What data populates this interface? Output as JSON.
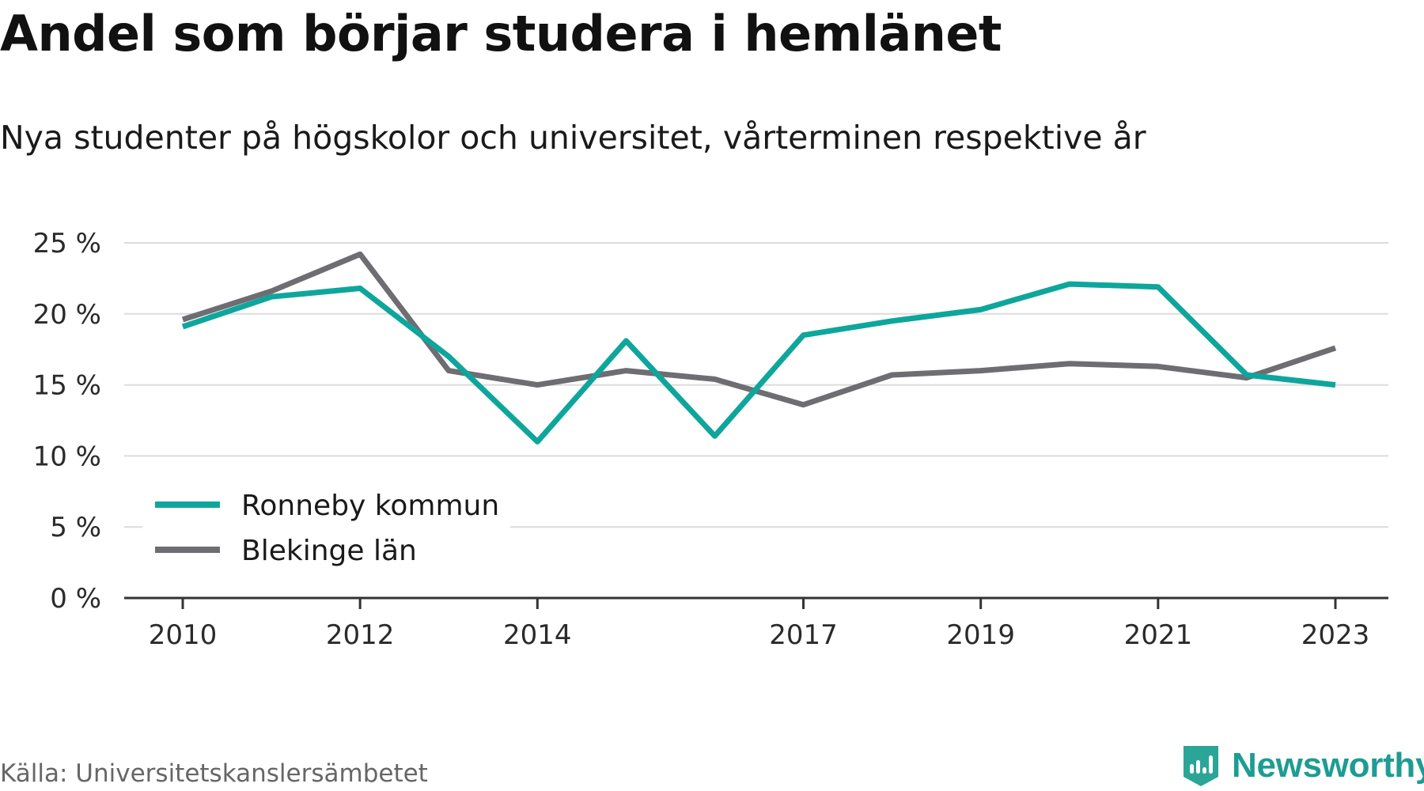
{
  "title": "Andel som börjar studera i hemlänet",
  "subtitle": "Nya studenter på högskolor och universitet, vårterminen respektive år",
  "source": "Källa: Universitetskanslersämbetet",
  "brand": "Newsworthy",
  "chart_data": {
    "type": "line",
    "x": [
      2010,
      2011,
      2012,
      2013,
      2014,
      2015,
      2016,
      2017,
      2018,
      2019,
      2020,
      2021,
      2022,
      2023
    ],
    "x_tick_labels": [
      "2010",
      "2012",
      "2014",
      "2017",
      "2019",
      "2021",
      "2023"
    ],
    "y_ticks": [
      0,
      5,
      10,
      15,
      20,
      25
    ],
    "y_tick_labels": [
      "0 %",
      "5 %",
      "10 %",
      "15 %",
      "20 %",
      "25 %"
    ],
    "ylim": [
      0,
      25
    ],
    "grid": true,
    "legend_position": "bottom-left",
    "series": [
      {
        "name": "Ronneby kommun",
        "color": "#0ea69c",
        "values": [
          19.1,
          21.2,
          21.8,
          17.0,
          11.0,
          18.1,
          11.4,
          18.5,
          19.5,
          20.3,
          22.1,
          21.9,
          15.7,
          15.0
        ]
      },
      {
        "name": "Blekinge län",
        "color": "#6e6d72",
        "values": [
          19.6,
          21.6,
          24.2,
          16.0,
          15.0,
          16.0,
          15.4,
          13.6,
          15.7,
          16.0,
          16.5,
          16.3,
          15.5,
          17.6
        ]
      }
    ]
  }
}
